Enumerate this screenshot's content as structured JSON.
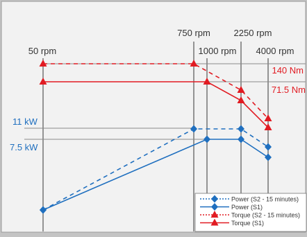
{
  "colors": {
    "frame": "#c4c4c4",
    "panel": "#f2f2f2",
    "grid": "#555555",
    "guide": "#8a8a8a",
    "power": "#1f6fbf",
    "torque": "#e11b22",
    "text": "#333333"
  },
  "chart_data": {
    "type": "line",
    "title": "",
    "xlabel": "",
    "ylabel": "",
    "x_ticks": [
      "50 rpm",
      "750 rpm",
      "1000 rpm",
      "2250 rpm",
      "4000 rpm"
    ],
    "y_annotations": {
      "torque": [
        "140 Nm",
        "71.5 Nm"
      ],
      "power": [
        "11 kW",
        "7.5 kW"
      ]
    },
    "series": [
      {
        "name": "Power (S2 - 15 minutes)",
        "color": "#1f6fbf",
        "dash": true,
        "marker": "diamond",
        "x": [
          "50 rpm",
          "750 rpm",
          "2250 rpm",
          "4000 rpm"
        ],
        "values": [
          0,
          11,
          11,
          7.5
        ]
      },
      {
        "name": "Power (S1)",
        "color": "#1f6fbf",
        "dash": false,
        "marker": "diamond",
        "x": [
          "50 rpm",
          "1000 rpm",
          "2250 rpm",
          "4000 rpm"
        ],
        "values": [
          0,
          7.5,
          7.5,
          4.5
        ]
      },
      {
        "name": "Torque (S2 - 15 minutes)",
        "color": "#e11b22",
        "dash": true,
        "marker": "triangle",
        "x": [
          "50 rpm",
          "750 rpm",
          "2250 rpm",
          "4000 rpm"
        ],
        "values": [
          140,
          140,
          115,
          71.5
        ]
      },
      {
        "name": "Torque (S1)",
        "color": "#e11b22",
        "dash": false,
        "marker": "triangle",
        "x": [
          "50 rpm",
          "1000 rpm",
          "2250 rpm",
          "4000 rpm"
        ],
        "values": [
          120,
          120,
          95,
          58
        ]
      }
    ],
    "legend_position": "bottom-right",
    "grid": false
  }
}
